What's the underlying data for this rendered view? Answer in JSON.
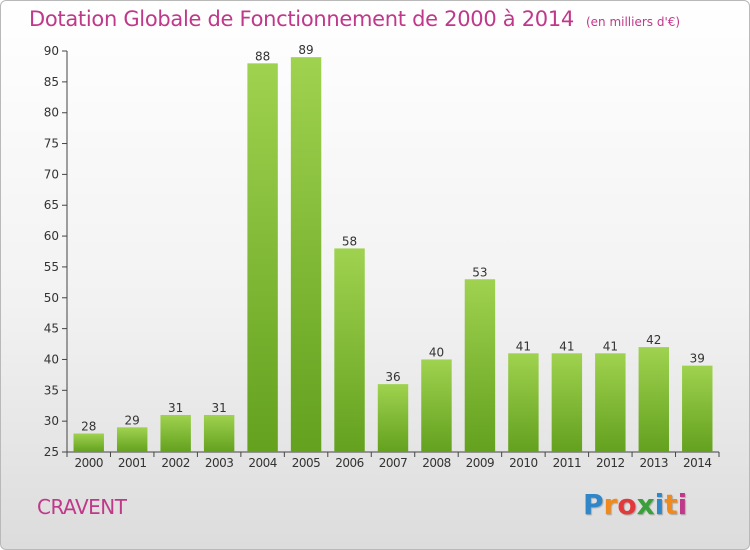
{
  "header": {
    "title": "Dotation Globale de Fonctionnement de 2000 à 2014",
    "unit": "(en milliers d'€)"
  },
  "footer": {
    "commune": "CRAVENT",
    "logo_letters": [
      "P",
      "r",
      "o",
      "x",
      "i",
      "t",
      "i"
    ],
    "logo_colors": [
      "#2f86c8",
      "#f08a1e",
      "#e23a3a",
      "#3aa03a",
      "#2f86c8",
      "#f08a1e",
      "#c0388a"
    ]
  },
  "colors": {
    "title": "#c0388a",
    "bar_light": "#9fd24f",
    "bar_dark": "#63a11e"
  },
  "chart_data": {
    "type": "bar",
    "categories": [
      "2000",
      "2001",
      "2002",
      "2003",
      "2004",
      "2005",
      "2006",
      "2007",
      "2008",
      "2009",
      "2010",
      "2011",
      "2012",
      "2013",
      "2014"
    ],
    "values": [
      28,
      29,
      31,
      31,
      88,
      89,
      58,
      36,
      40,
      53,
      41,
      41,
      41,
      42,
      39
    ],
    "title": "Dotation Globale de Fonctionnement de 2000 à 2014",
    "subtitle": "(en milliers d'€)",
    "xlabel": "",
    "ylabel": "",
    "ylim": [
      25,
      90
    ],
    "yticks": [
      25,
      30,
      35,
      40,
      45,
      50,
      55,
      60,
      65,
      70,
      75,
      80,
      85,
      90
    ],
    "grid": false,
    "data_labels": true
  }
}
